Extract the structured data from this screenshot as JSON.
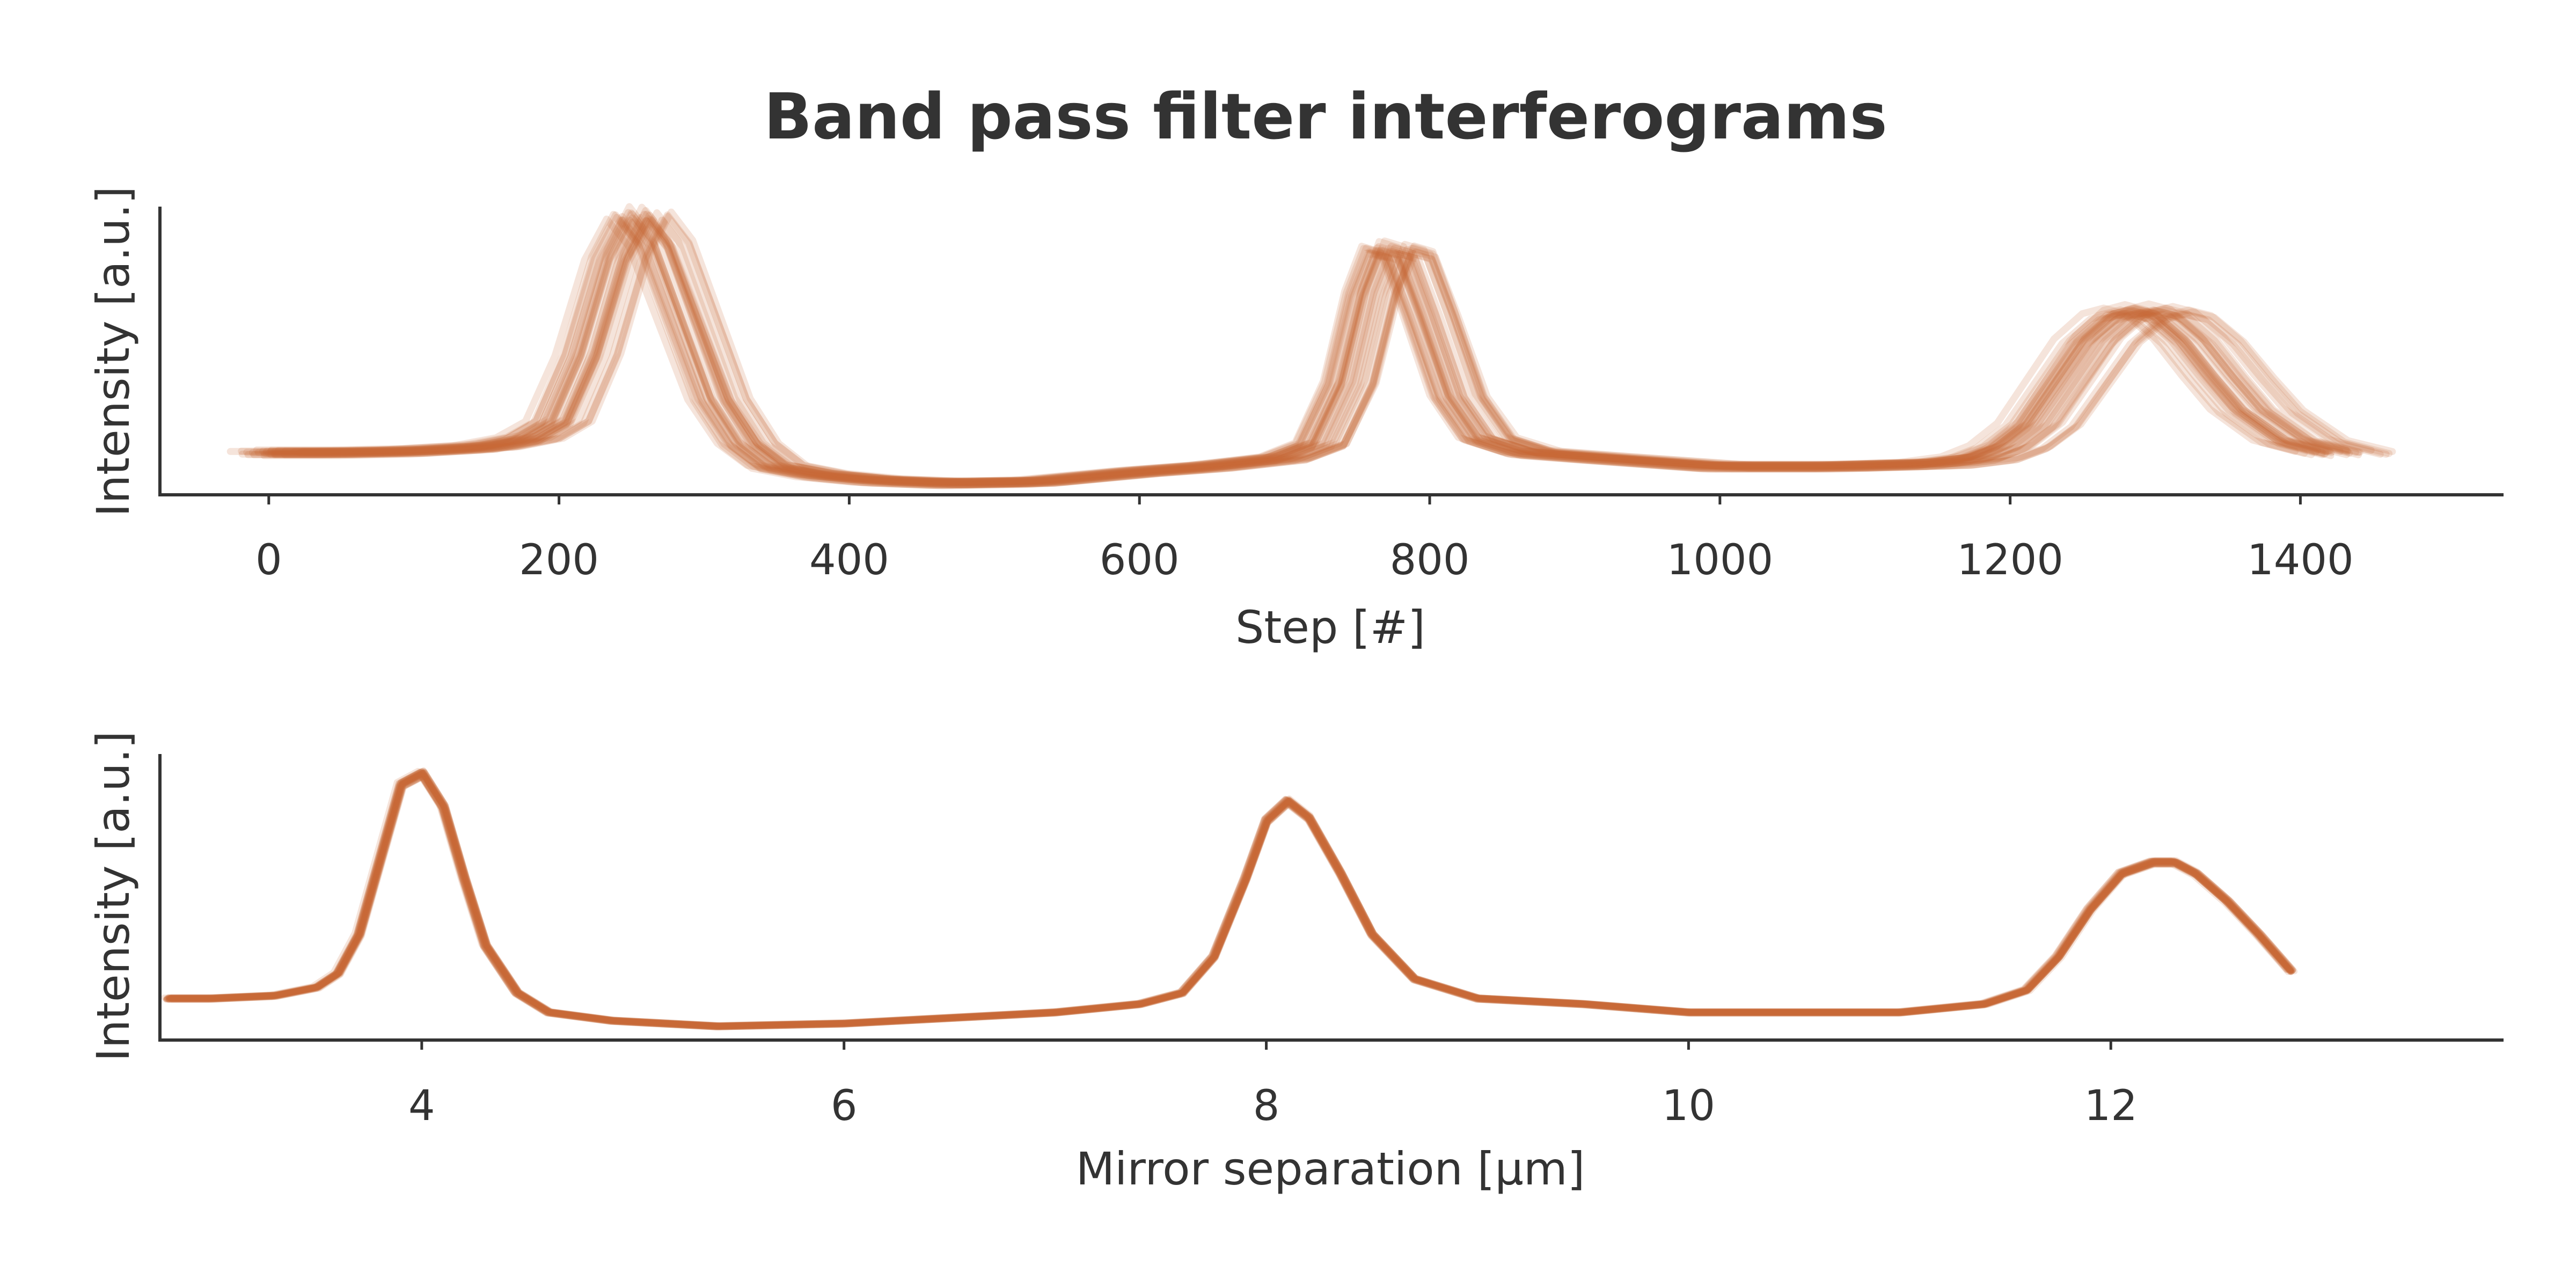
{
  "chart_data": [
    {
      "type": "line",
      "title": "Band pass filter interferograms",
      "xlabel": "Step [#]",
      "ylabel": "Intensity [a.u.]",
      "xlim": [
        -75,
        1540
      ],
      "ylim": [
        0.0,
        1.03
      ],
      "xticks": [
        0,
        200,
        400,
        600,
        800,
        1000,
        1200,
        1400
      ],
      "tick_labels": [
        "0",
        "200",
        "400",
        "600",
        "800",
        1000,
        1200,
        1400
      ],
      "y_ticks_shown": false,
      "grid": false,
      "legend": "none",
      "color": "#c8693a",
      "trace_count": 30,
      "trace_opacity": 0.18,
      "trace_spread": {
        "x_jitter_steps": 18,
        "x_stretch": 0.025,
        "y_jitter": 0.03
      },
      "x": [
        0,
        50,
        100,
        150,
        180,
        200,
        220,
        240,
        255,
        270,
        290,
        310,
        330,
        350,
        380,
        420,
        470,
        530,
        600,
        650,
        700,
        725,
        745,
        760,
        772,
        785,
        800,
        820,
        840,
        870,
        920,
        1000,
        1080,
        1150,
        1180,
        1200,
        1220,
        1240,
        1260,
        1280,
        1295,
        1310,
        1330,
        1350,
        1370,
        1400,
        1430
      ],
      "y": [
        0.15,
        0.15,
        0.155,
        0.17,
        0.2,
        0.26,
        0.5,
        0.85,
        1.0,
        0.9,
        0.62,
        0.34,
        0.18,
        0.1,
        0.07,
        0.05,
        0.04,
        0.045,
        0.08,
        0.1,
        0.13,
        0.18,
        0.4,
        0.72,
        0.88,
        0.86,
        0.65,
        0.35,
        0.2,
        0.15,
        0.13,
        0.1,
        0.1,
        0.11,
        0.13,
        0.17,
        0.25,
        0.4,
        0.55,
        0.64,
        0.66,
        0.64,
        0.55,
        0.42,
        0.3,
        0.19,
        0.15
      ]
    },
    {
      "type": "line",
      "xlabel": "Mirror separation [µm]",
      "ylabel": "Intensity [a.u.]",
      "xlim": [
        2.76,
        13.86
      ],
      "ylim": [
        0.0,
        1.03
      ],
      "xticks": [
        4,
        6,
        8,
        10,
        12
      ],
      "tick_labels": [
        "4",
        "6",
        "8",
        "10",
        "12"
      ],
      "y_ticks_shown": false,
      "grid": false,
      "legend": "none",
      "color": "#c8693a",
      "trace_count": 30,
      "trace_opacity": 0.18,
      "trace_spread": {
        "x_jitter": 0.012,
        "x_stretch": 0.002,
        "y_jitter": 0.015
      },
      "x": [
        2.8,
        3.0,
        3.3,
        3.5,
        3.6,
        3.7,
        3.8,
        3.9,
        4.0,
        4.1,
        4.2,
        4.3,
        4.45,
        4.6,
        4.9,
        5.4,
        6.0,
        6.5,
        7.0,
        7.4,
        7.6,
        7.75,
        7.9,
        8.0,
        8.1,
        8.2,
        8.35,
        8.5,
        8.7,
        9.0,
        9.5,
        10.0,
        10.5,
        11.0,
        11.4,
        11.6,
        11.75,
        11.9,
        12.05,
        12.2,
        12.3,
        12.4,
        12.55,
        12.7,
        12.85
      ],
      "y": [
        0.15,
        0.15,
        0.16,
        0.19,
        0.24,
        0.38,
        0.65,
        0.92,
        0.96,
        0.84,
        0.58,
        0.34,
        0.17,
        0.1,
        0.07,
        0.05,
        0.06,
        0.08,
        0.1,
        0.13,
        0.17,
        0.3,
        0.58,
        0.79,
        0.86,
        0.8,
        0.6,
        0.38,
        0.22,
        0.15,
        0.13,
        0.1,
        0.1,
        0.1,
        0.13,
        0.18,
        0.3,
        0.47,
        0.6,
        0.64,
        0.64,
        0.6,
        0.5,
        0.38,
        0.25
      ]
    }
  ]
}
